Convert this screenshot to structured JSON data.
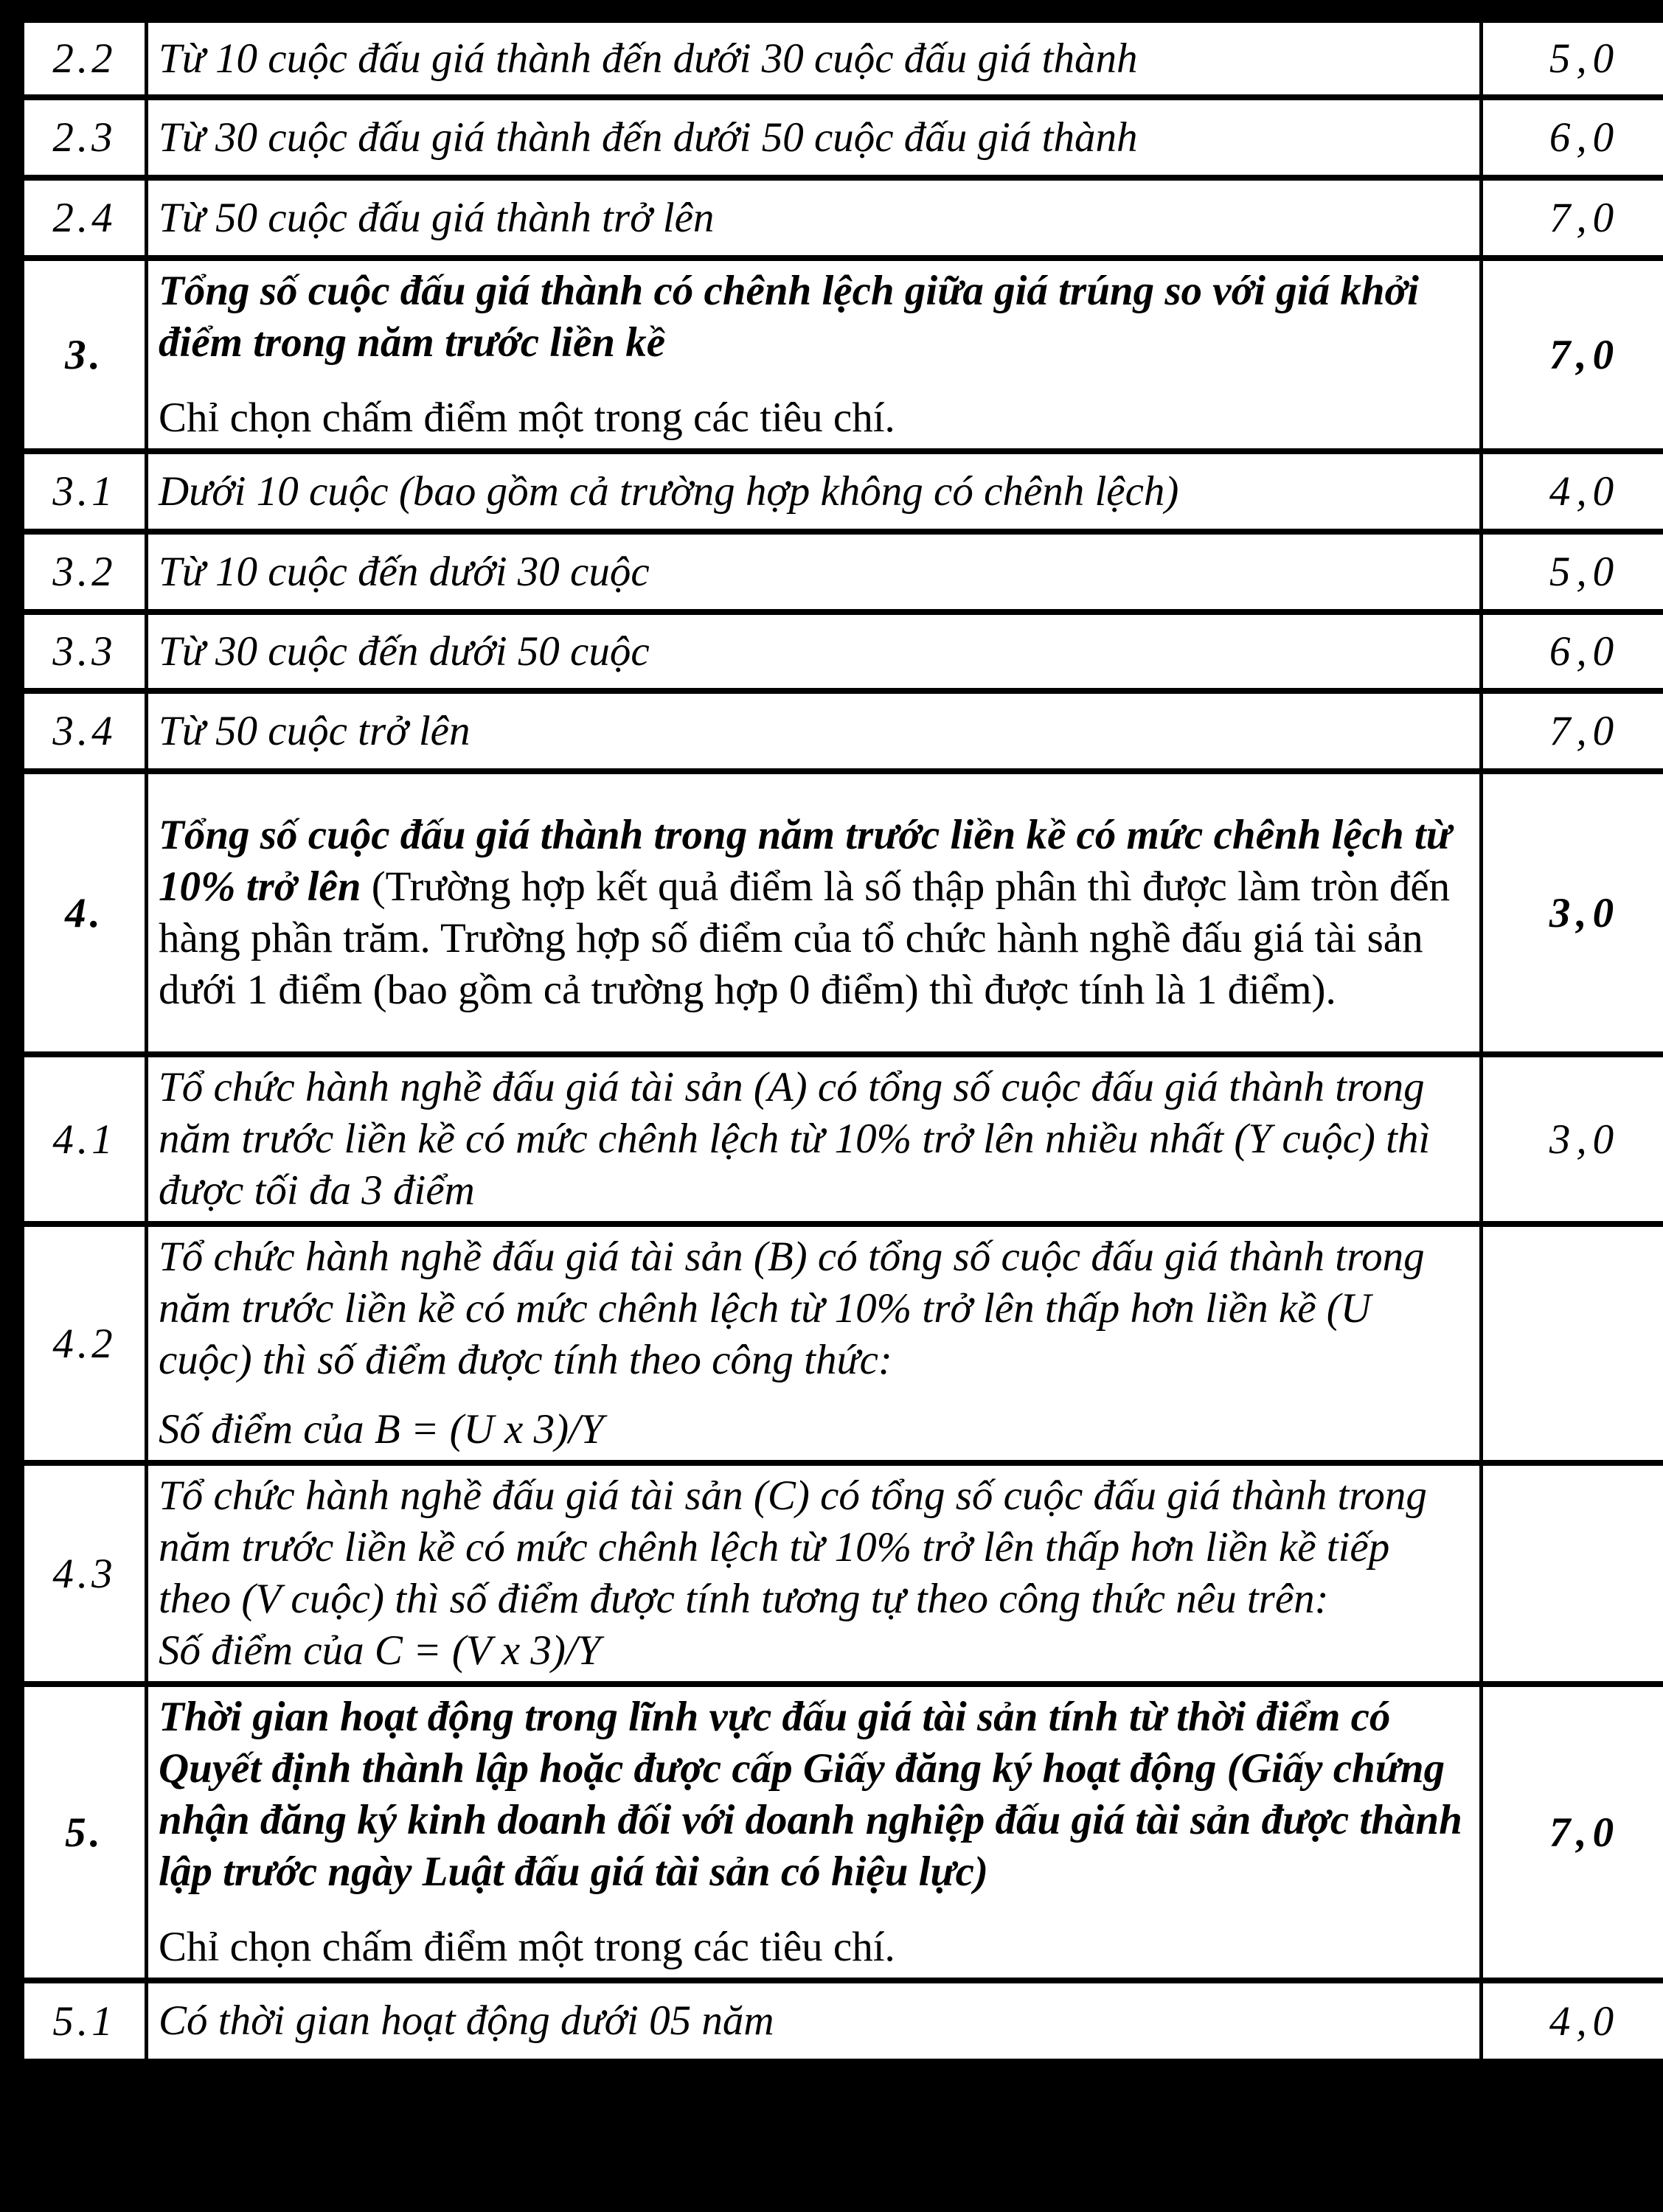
{
  "page": {
    "background_color": "#000000",
    "table_background_color": "#ffffff",
    "text_color": "#000000",
    "language": "vi"
  },
  "table": {
    "rows": [
      {
        "no": "2.2",
        "no_bold": false,
        "paragraphs": [
          {
            "class": "",
            "segments": [
              {
                "style": "italic",
                "text": "Từ 10 cuộc đấu giá thành đến dưới 30 cuộc đấu giá thành"
              }
            ]
          }
        ],
        "score": {
          "text": "5,0",
          "bold": false
        }
      },
      {
        "no": "2.3",
        "no_bold": false,
        "paragraphs": [
          {
            "class": "",
            "segments": [
              {
                "style": "italic",
                "text": "Từ 30 cuộc đấu giá thành đến dưới 50 cuộc đấu giá thành"
              }
            ]
          }
        ],
        "score": {
          "text": "6,0",
          "bold": false
        }
      },
      {
        "no": "2.4",
        "no_bold": false,
        "paragraphs": [
          {
            "class": "",
            "segments": [
              {
                "style": "italic",
                "text": "Từ 50 cuộc đấu giá thành trở lên"
              }
            ]
          }
        ],
        "score": {
          "text": "7,0",
          "bold": false
        }
      },
      {
        "no": "3.",
        "no_bold": true,
        "paragraphs": [
          {
            "class": "",
            "segments": [
              {
                "style": "bold-italic",
                "text": "Tổng số cuộc đấu giá thành có chênh lệch giữa giá trúng so với giá khởi điểm trong năm trước liền kề"
              }
            ]
          },
          {
            "class": "note",
            "segments": [
              {
                "style": "regular",
                "text": "Chỉ chọn chấm điểm một trong các tiêu chí."
              }
            ]
          }
        ],
        "score": {
          "text": "7,0",
          "bold": true
        }
      },
      {
        "no": "3.1",
        "no_bold": false,
        "paragraphs": [
          {
            "class": "",
            "segments": [
              {
                "style": "italic",
                "text": "Dưới 10 cuộc (bao gồm cả trường hợp không có chênh lệch)"
              }
            ]
          }
        ],
        "score": {
          "text": "4,0",
          "bold": false
        }
      },
      {
        "no": "3.2",
        "no_bold": false,
        "paragraphs": [
          {
            "class": "",
            "segments": [
              {
                "style": "italic",
                "text": "Từ 10 cuộc đến dưới 30 cuộc"
              }
            ]
          }
        ],
        "score": {
          "text": "5,0",
          "bold": false
        }
      },
      {
        "no": "3.3",
        "no_bold": false,
        "paragraphs": [
          {
            "class": "",
            "segments": [
              {
                "style": "italic",
                "text": "Từ 30 cuộc đến dưới 50 cuộc"
              }
            ]
          }
        ],
        "score": {
          "text": "6,0",
          "bold": false
        }
      },
      {
        "no": "3.4",
        "no_bold": false,
        "paragraphs": [
          {
            "class": "",
            "segments": [
              {
                "style": "italic",
                "text": "Từ 50 cuộc trở lên"
              }
            ]
          }
        ],
        "score": {
          "text": "7,0",
          "bold": false
        }
      },
      {
        "no": "4.",
        "no_bold": true,
        "paragraphs": [
          {
            "class": "",
            "segments": [
              {
                "style": "bold-italic",
                "text": "Tổng số cuộc đấu giá thành trong năm trước liền kề có mức chênh lệch từ 10% trở lên "
              },
              {
                "style": "regular",
                "text": "(Trường hợp kết quả điểm là số thập phân thì được làm tròn đến hàng phần trăm. Trường hợp số điểm của tổ chức hành nghề đấu giá tài sản dưới 1 điểm (bao gồm cả trường hợp 0 điểm) thì được tính là 1 điểm)."
              }
            ]
          }
        ],
        "score": {
          "text": "3,0",
          "bold": true
        }
      },
      {
        "no": "4.1",
        "no_bold": false,
        "paragraphs": [
          {
            "class": "",
            "segments": [
              {
                "style": "italic",
                "text": "Tổ chức hành nghề đấu giá tài sản (A) có tổng số cuộc đấu giá thành trong năm trước liền kề có mức chênh lệch từ 10% trở lên nhiều nhất (Y cuộc) thì được tối đa 3 điểm"
              }
            ]
          }
        ],
        "score": {
          "text": "3,0",
          "bold": false
        }
      },
      {
        "no": "4.2",
        "no_bold": false,
        "paragraphs": [
          {
            "class": "",
            "segments": [
              {
                "style": "italic",
                "text": "Tổ chức hành nghề đấu giá tài sản (B) có tổng số cuộc đấu giá thành trong năm trước liền kề có mức chênh lệch từ 10% trở lên thấp hơn liền kề (U cuộc) thì số điểm được tính theo công thức:"
              }
            ]
          },
          {
            "class": "gap",
            "segments": [
              {
                "style": "italic",
                "text": "Số điểm của B = (U x 3)/Y"
              }
            ]
          }
        ],
        "score": {
          "text": "",
          "bold": false
        }
      },
      {
        "no": "4.3",
        "no_bold": false,
        "paragraphs": [
          {
            "class": "",
            "segments": [
              {
                "style": "italic",
                "text": "Tổ chức hành nghề đấu giá tài sản (C) có tổng số cuộc đấu giá thành trong năm trước liền kề có mức chênh lệch từ 10% trở lên thấp hơn liền kề tiếp theo (V cuộc) thì số điểm được tính tương tự theo công thức nêu trên:"
              }
            ]
          },
          {
            "class": "",
            "segments": [
              {
                "style": "italic",
                "text": "Số điểm của C = (V x 3)/Y"
              }
            ]
          }
        ],
        "score": {
          "text": "",
          "bold": false
        }
      },
      {
        "no": "5.",
        "no_bold": true,
        "paragraphs": [
          {
            "class": "",
            "segments": [
              {
                "style": "bold-italic",
                "text": "Thời gian hoạt động trong lĩnh vực đấu giá tài sản tính từ thời điểm có Quyết định thành lập hoặc được cấp Giấy đăng ký hoạt động (Giấy chứng nhận đăng ký kinh doanh đối với doanh nghiệp đấu giá tài sản được thành lập trước ngày Luật đấu giá tài sản có hiệu lực)"
              }
            ]
          },
          {
            "class": "note",
            "segments": [
              {
                "style": "regular",
                "text": "Chỉ chọn chấm điểm một trong các tiêu chí."
              }
            ]
          }
        ],
        "score": {
          "text": "7,0",
          "bold": true
        }
      },
      {
        "no": "5.1",
        "no_bold": false,
        "paragraphs": [
          {
            "class": "",
            "segments": [
              {
                "style": "italic",
                "text": "Có thời gian hoạt động dưới 05 năm"
              }
            ]
          }
        ],
        "score": {
          "text": "4,0",
          "bold": false
        }
      }
    ]
  }
}
